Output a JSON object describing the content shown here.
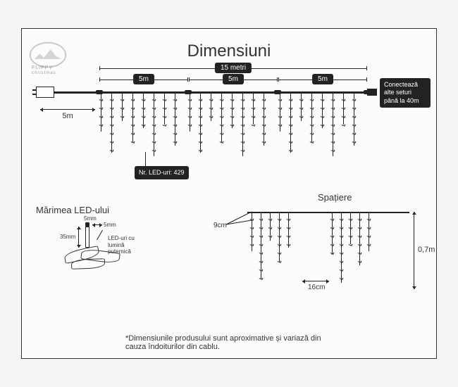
{
  "title": "Dimensiuni",
  "logo_tag": "FLIPPY",
  "logo_sub": "christmas",
  "top": {
    "total_label": "15 metri",
    "segment_label": "5m",
    "lead_label": "5m",
    "connect_label": "Conectează\nalte seturi\npână la 40m",
    "led_count": "Nr. LED-uri: 429"
  },
  "led_size": {
    "section": "Mărimea LED-ului",
    "tip_w": "5mm",
    "tip_h": "5mm",
    "body_h": "35mm",
    "note": "LED-uri cu lumină\nputernică"
  },
  "spacing": {
    "section": "Spațiere",
    "drop_spacing": "9cm",
    "group_spacing": "16cm",
    "height": "0,7m"
  },
  "footnote": "*Dimensiunile produsului sunt aproximative și variază din cauza îndoiturilor din cablu.",
  "colors": {
    "ink": "#222222",
    "bg": "#fcfcfc"
  }
}
